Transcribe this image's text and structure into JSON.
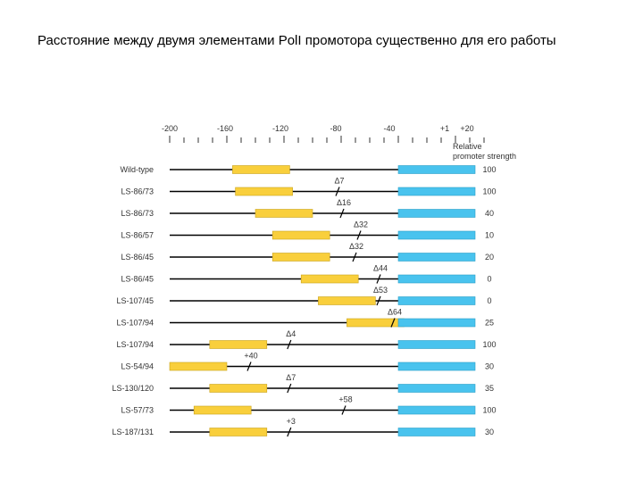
{
  "slide": {
    "title": "Расстояние между двумя элементами PolI промотора существенно для его работы"
  },
  "figure": {
    "colors": {
      "upstream_element": "#f9cf3c",
      "core_element": "#49c3ee",
      "line": "#000000",
      "text": "#333333"
    },
    "axis_labels": [
      "-200",
      "-160",
      "-120",
      "-80",
      "-40",
      "+1",
      "+20"
    ],
    "strength_header": [
      "Relative",
      "promoter strength"
    ],
    "rows": [
      {
        "label": "Wild-type",
        "upstream": [
          -156,
          -116
        ],
        "core": [
          -40,
          20
        ],
        "strength": "100",
        "mutation_label": ""
      },
      {
        "label": "LS-86/73",
        "upstream": [
          -154,
          -114
        ],
        "core": [
          -40,
          20
        ],
        "strength": "100",
        "mutation_label": "Δ7"
      },
      {
        "label": "LS-86/73",
        "upstream": [
          -140,
          -100
        ],
        "core": [
          -40,
          20
        ],
        "strength": "40",
        "mutation_label": "Δ16"
      },
      {
        "label": "LS-86/57",
        "upstream": [
          -128,
          -88
        ],
        "core": [
          -40,
          20
        ],
        "strength": "10",
        "mutation_label": "Δ32"
      },
      {
        "label": "LS-86/45",
        "upstream": [
          -128,
          -88
        ],
        "core": [
          -40,
          20
        ],
        "strength": "20",
        "mutation_label": "Δ32"
      },
      {
        "label": "LS-86/45",
        "upstream": [
          -108,
          -68
        ],
        "core": [
          -40,
          20
        ],
        "strength": "0",
        "mutation_label": "Δ44"
      },
      {
        "label": "LS-107/45",
        "upstream": [
          -96,
          -56
        ],
        "core": [
          -40,
          20
        ],
        "strength": "0",
        "mutation_label": "Δ53"
      },
      {
        "label": "LS-107/94",
        "upstream": [
          -76,
          -36
        ],
        "core": [
          -40,
          20
        ],
        "strength": "25",
        "mutation_label": "Δ64"
      },
      {
        "label": "LS-107/94",
        "upstream": [
          -172,
          -132
        ],
        "core": [
          -40,
          20
        ],
        "strength": "100",
        "mutation_label": "Δ4"
      },
      {
        "label": "LS-54/94",
        "upstream": [
          -200,
          -160
        ],
        "core": [
          -40,
          20
        ],
        "strength": "30",
        "mutation_label": "+40"
      },
      {
        "label": "LS-130/120",
        "upstream": [
          -172,
          -132
        ],
        "core": [
          -40,
          20
        ],
        "strength": "35",
        "mutation_label": "Δ7"
      },
      {
        "label": "LS-57/73",
        "upstream": [
          -183,
          -143
        ],
        "core": [
          -40,
          20
        ],
        "strength": "100",
        "mutation_label": "+58"
      },
      {
        "label": "LS-187/131",
        "upstream": [
          -172,
          -132
        ],
        "core": [
          -40,
          20
        ],
        "strength": "30",
        "mutation_label": "+3"
      }
    ]
  }
}
